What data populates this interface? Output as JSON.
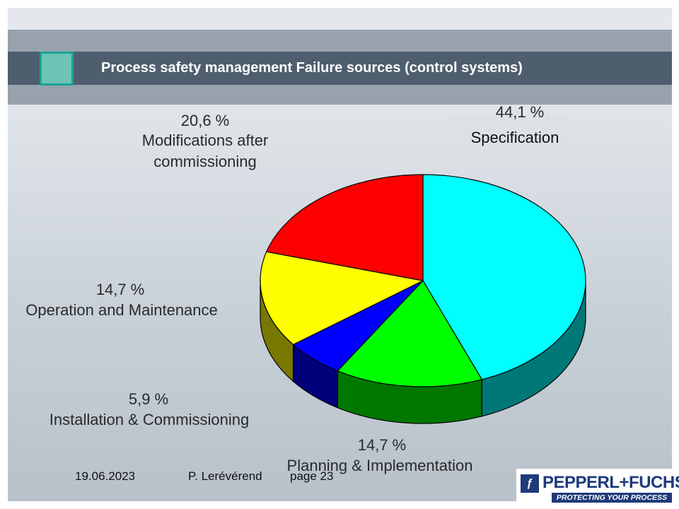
{
  "slide": {
    "title": "Process safety management Failure sources (control systems)"
  },
  "chart_data": {
    "type": "pie",
    "slices": [
      {
        "name": "Specification",
        "percent_label": "44,1 %",
        "value": 44.1,
        "color": "#00ffff",
        "side_color": "#007878"
      },
      {
        "name": "Planning & Implementation",
        "percent_label": "14,7 %",
        "value": 14.7,
        "color": "#00ff00",
        "side_color": "#007800"
      },
      {
        "name": "Installation & Commissioning",
        "percent_label": "5,9 %",
        "value": 5.9,
        "color": "#0000ff",
        "side_color": "#000078"
      },
      {
        "name": "Operation and Maintenance",
        "percent_label": "14,7 %",
        "value": 14.7,
        "color": "#ffff00",
        "side_color": "#787800"
      },
      {
        "name": "Modifications after commissioning",
        "name_lines": [
          "Modifications after",
          "commissioning"
        ],
        "percent_label": "20,6 %",
        "value": 20.6,
        "color": "#ff0000",
        "side_color": "#780000"
      }
    ]
  },
  "footer": {
    "date": "19.06.2023",
    "author": "P. Lerévérend",
    "page": "page 23"
  },
  "logo": {
    "name": "PEPPERL+FUCHS",
    "tagline": "PROTECTING YOUR PROCESS"
  }
}
